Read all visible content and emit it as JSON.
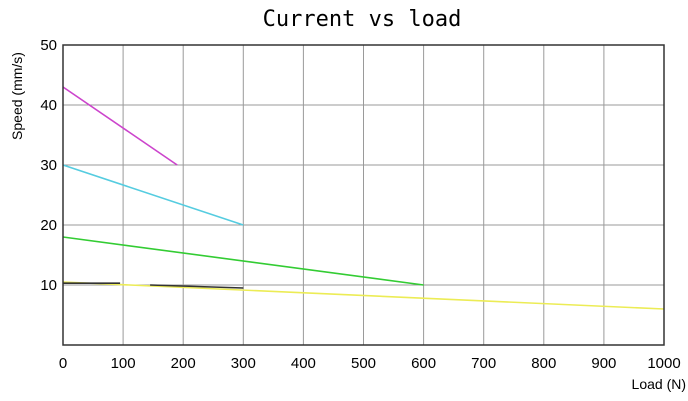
{
  "chart_data": {
    "type": "line",
    "title": "Current vs load",
    "xlabel": "Load (N)",
    "ylabel": "Speed (mm/s)",
    "xlim": [
      0,
      1000
    ],
    "ylim": [
      0,
      50
    ],
    "x_ticks": [
      0,
      100,
      200,
      300,
      400,
      500,
      600,
      700,
      800,
      900,
      1000
    ],
    "y_ticks": [
      10,
      20,
      30,
      40,
      50
    ],
    "grid": true,
    "legend": "none",
    "series": [
      {
        "color": "#cc44cc",
        "x": [
          0,
          190
        ],
        "values": [
          43,
          30
        ]
      },
      {
        "color": "#55cce0",
        "x": [
          0,
          300
        ],
        "values": [
          30,
          20
        ]
      },
      {
        "color": "#33cc33",
        "x": [
          0,
          600
        ],
        "values": [
          18,
          10
        ]
      },
      {
        "color": "#ecec55",
        "x": [
          0,
          1000
        ],
        "values": [
          10.5,
          6
        ]
      },
      {
        "color": "#333333",
        "x": [
          0,
          95
        ],
        "values": [
          10.3,
          10.3
        ]
      },
      {
        "color": "#333333",
        "x": [
          145,
          300
        ],
        "values": [
          10.0,
          9.5
        ]
      }
    ]
  }
}
